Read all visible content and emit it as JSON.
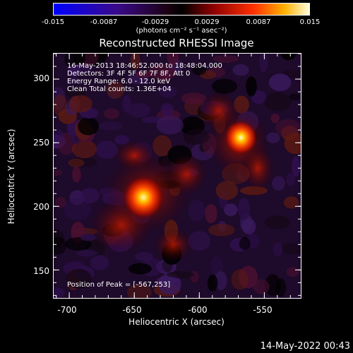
{
  "colorbar": {
    "ticks": [
      "-0.015",
      "-0.0087",
      "-0.0029",
      "0.0029",
      "0.0087",
      "0.015"
    ],
    "units": "(photons cm⁻² s⁻¹ asec⁻²)"
  },
  "chart_data": {
    "type": "heatmap",
    "title": "Reconstructed RHESSI Image",
    "xlabel": "Heliocentric X (arcsec)",
    "ylabel": "Heliocentric Y (arcsec)",
    "xlim": [
      -712,
      -522
    ],
    "ylim": [
      128,
      320
    ],
    "x_ticks": [
      "-700",
      "-650",
      "-600",
      "-550"
    ],
    "y_ticks": [
      "150",
      "200",
      "250",
      "300"
    ],
    "colorbar_range": [
      -0.015,
      0.015
    ],
    "sources": [
      {
        "x": -568,
        "y": 254,
        "peak": 0.015
      },
      {
        "x": -643,
        "y": 207,
        "peak": 0.013
      }
    ],
    "annotations": {
      "time": "16-May-2013 18:46:52.000 to 18:48:04.000",
      "detectors": "Detectors: 3F 4F 5F 6F 7F 8F, Att 0",
      "energy": "Energy Range: 6.0 - 12.0 keV",
      "clean": "Clean     Total counts: 1.36E+04",
      "peak": "Position of Peak = [-567,253]"
    },
    "grid": false
  },
  "footer": "14-May-2022 00:43",
  "colors": {
    "background": "#000000",
    "text": "#ffffff"
  }
}
